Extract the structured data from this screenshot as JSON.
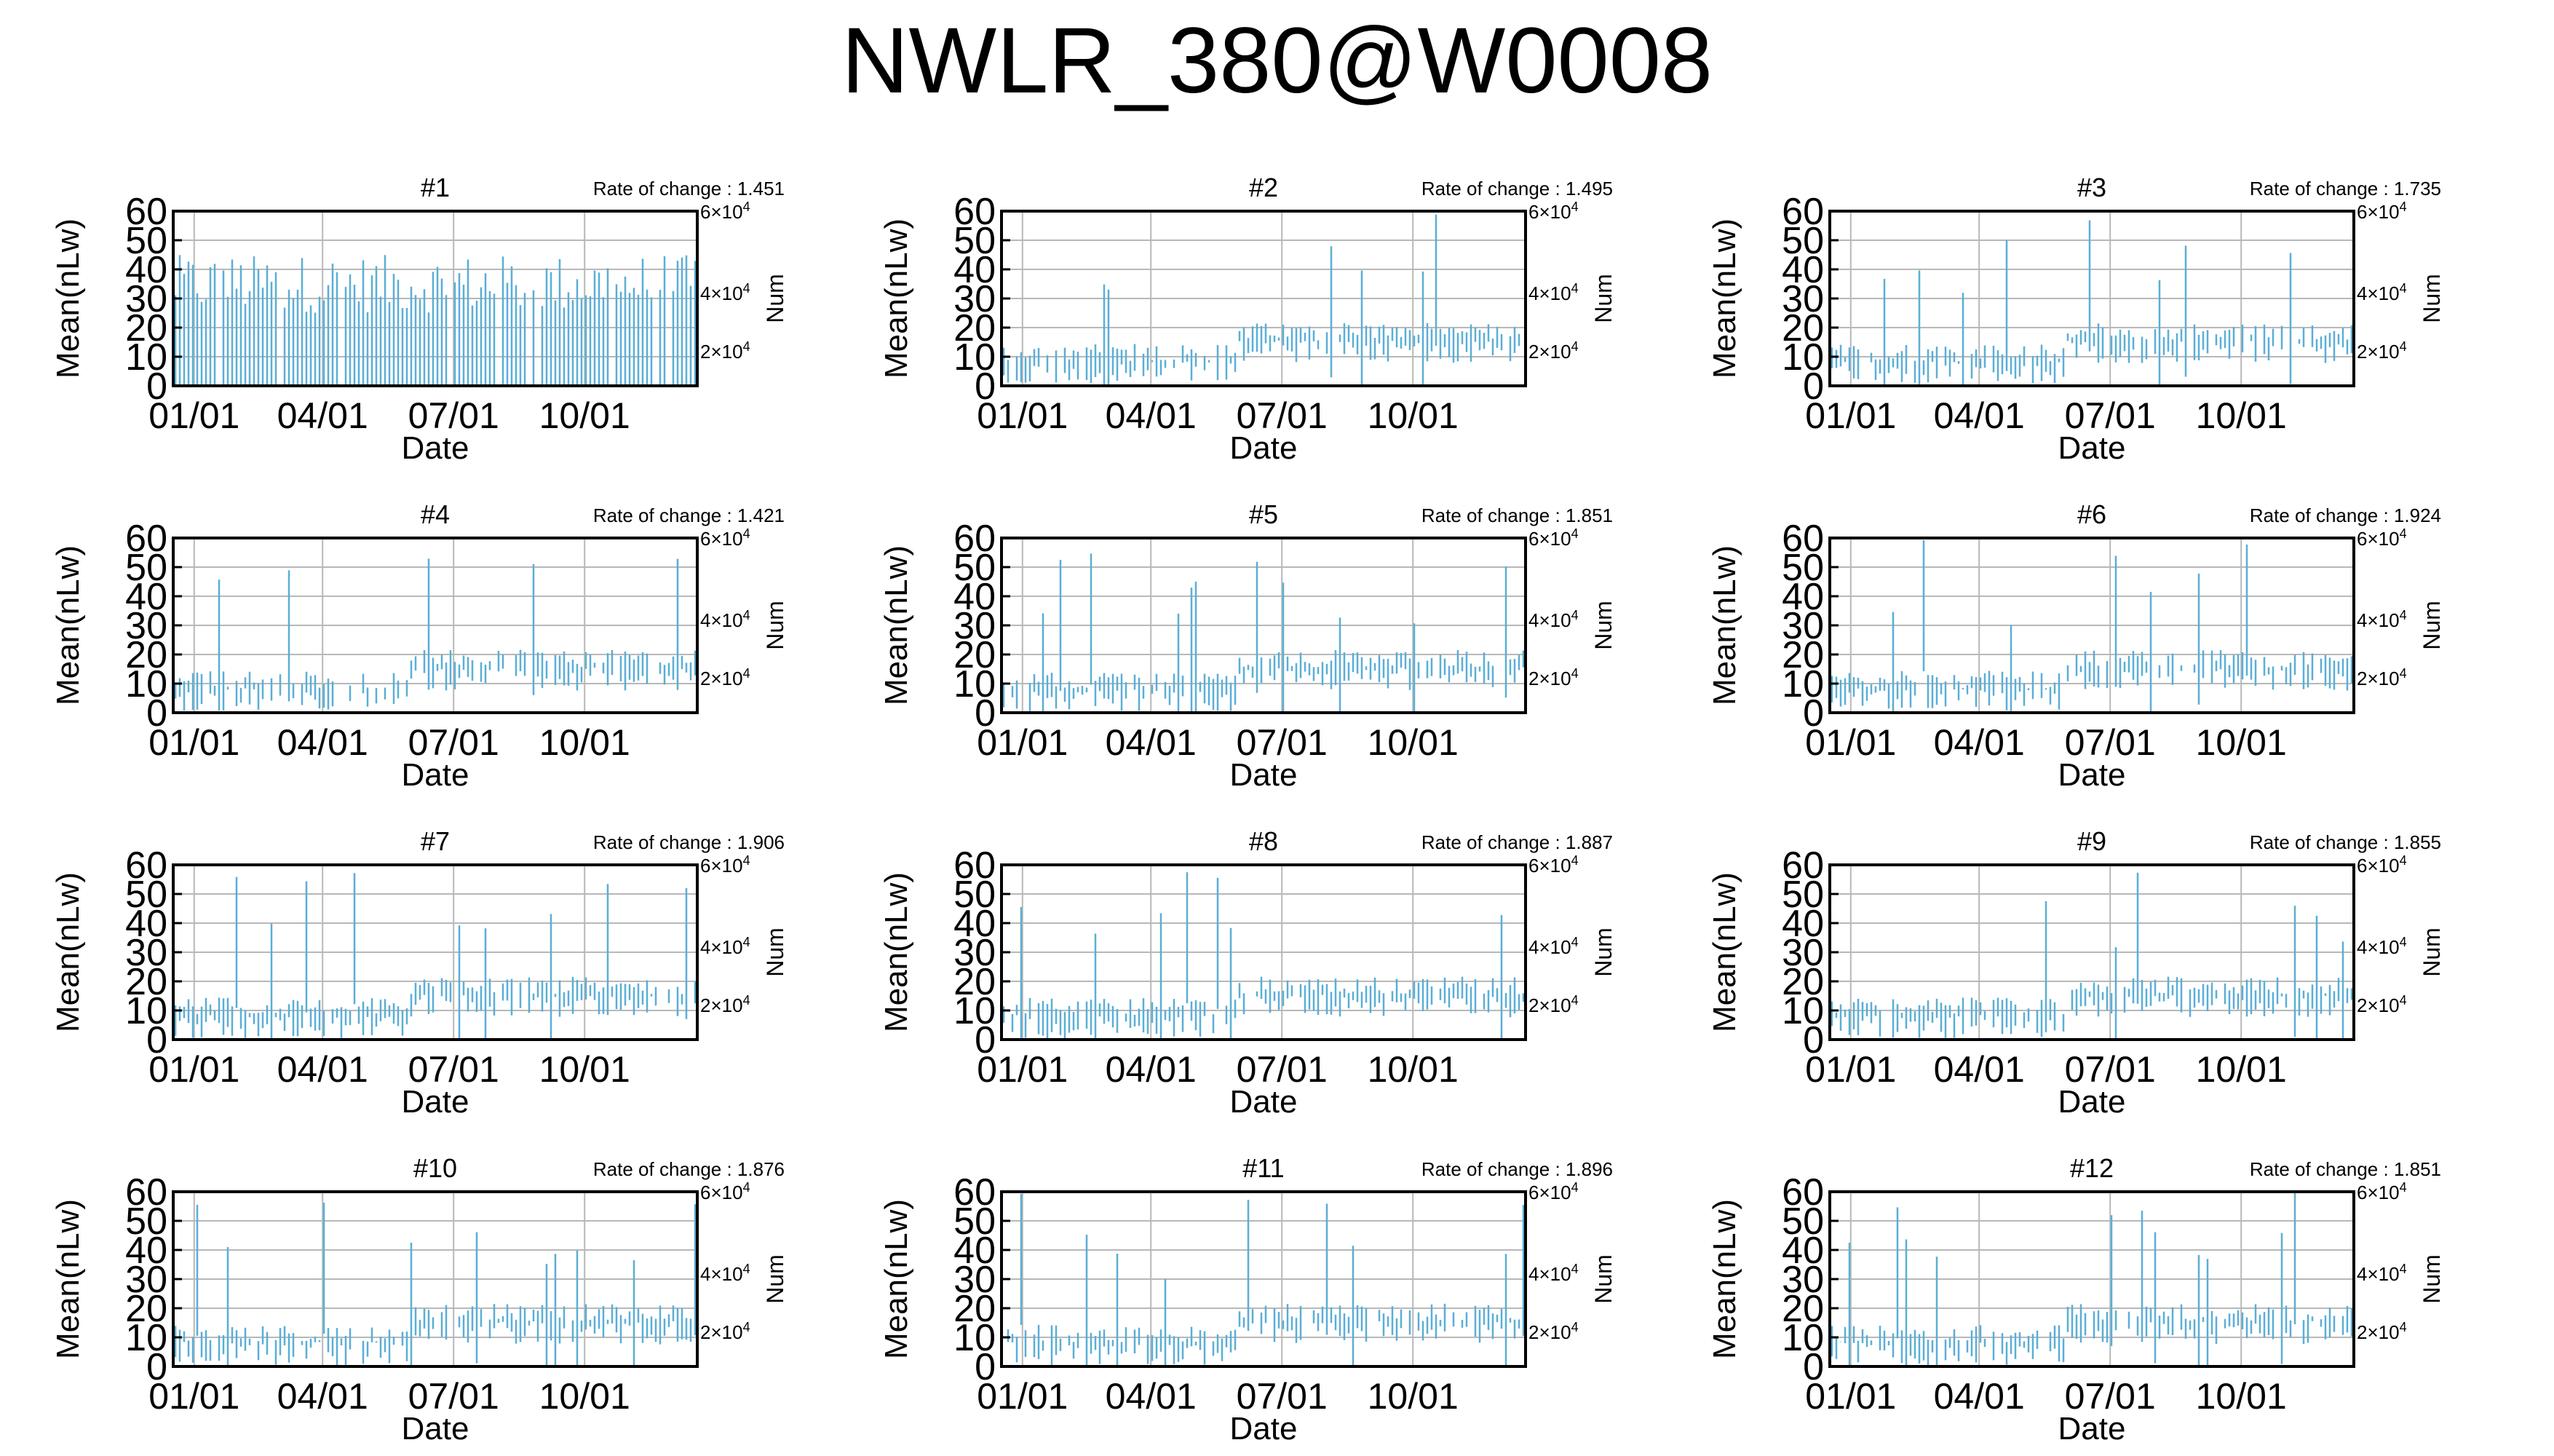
{
  "title": "NWLR_380@W0008",
  "colors": {
    "series": "#5aaed6",
    "axis": "#000000",
    "grid": "#b8b8b8"
  },
  "chart_data": {
    "type": "line",
    "grid": true,
    "layout": "4 rows x 3 columns of panels",
    "shared_axes": {
      "xlabel": "Date",
      "xticks": [
        "01/01",
        "04/01",
        "07/01",
        "10/01"
      ],
      "ylabel": "Mean(nLw)",
      "ylim": [
        0,
        60
      ],
      "yticks": [
        0,
        10,
        20,
        30,
        40,
        50,
        60
      ],
      "y2label": "Num",
      "y2ticks": [
        {
          "base": "2×10",
          "exp": "4"
        },
        {
          "base": "4×10",
          "exp": "4"
        },
        {
          "base": "6×10",
          "exp": "4"
        }
      ]
    },
    "panels": [
      {
        "title": "#1",
        "rate": "Rate of change : 1.451",
        "approx_mean_level": 30
      },
      {
        "title": "#2",
        "rate": "Rate of change : 1.495",
        "approx_mean_level": 12
      },
      {
        "title": "#3",
        "rate": "Rate of change : 1.735",
        "approx_mean_level": 12
      },
      {
        "title": "#4",
        "rate": "Rate of change : 1.421",
        "approx_mean_level": 12
      },
      {
        "title": "#5",
        "rate": "Rate of change : 1.851",
        "approx_mean_level": 12
      },
      {
        "title": "#6",
        "rate": "Rate of change : 1.924",
        "approx_mean_level": 12
      },
      {
        "title": "#7",
        "rate": "Rate of change : 1.906",
        "approx_mean_level": 12
      },
      {
        "title": "#8",
        "rate": "Rate of change : 1.887",
        "approx_mean_level": 12
      },
      {
        "title": "#9",
        "rate": "Rate of change : 1.855",
        "approx_mean_level": 12
      },
      {
        "title": "#10",
        "rate": "Rate of change : 1.876",
        "approx_mean_level": 12
      },
      {
        "title": "#11",
        "rate": "Rate of change : 1.896",
        "approx_mean_level": 12
      },
      {
        "title": "#12",
        "rate": "Rate of change : 1.851",
        "approx_mean_level": 12
      }
    ]
  }
}
